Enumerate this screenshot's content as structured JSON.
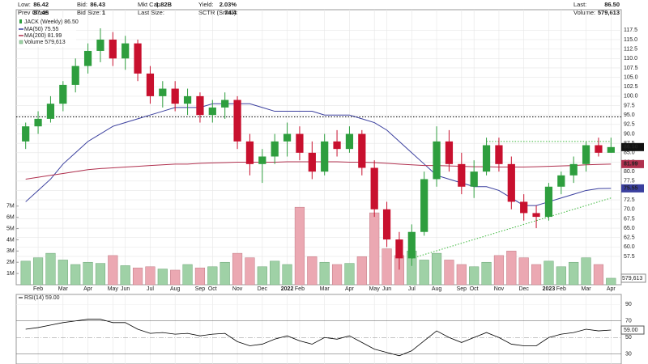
{
  "header": {
    "rows": [
      [
        [
          "Low:",
          "86.42"
        ],
        [
          "Bid:",
          "86.43"
        ],
        [
          "Mkt Cap:",
          "1.82B"
        ],
        [
          "Yield:",
          "2.03%"
        ],
        [
          "Last:",
          "86.50"
        ]
      ],
      [
        [
          "Prev Close:",
          "87.45"
        ],
        [
          "Bid Size:",
          "1"
        ],
        [
          "Last Size:"
        ],
        [
          "SCTR (Small):",
          "74.4"
        ],
        [
          "Volume:",
          "579,613"
        ]
      ]
    ]
  },
  "chart_data": {
    "type": "candlestick",
    "name": "JACK (Weekly) 86.50",
    "last_label": "86.50",
    "up_color": "#2e9e3e",
    "down_color": "#c8102e",
    "categories": [
      null,
      "Feb",
      null,
      "Mar",
      null,
      "Apr",
      null,
      "May",
      "Jun",
      null,
      "Jul",
      null,
      "Aug",
      null,
      "Sep",
      "Oct",
      null,
      "Nov",
      null,
      "Dec",
      null,
      "2022",
      "Feb",
      null,
      "Mar",
      null,
      "Apr",
      null,
      "May",
      "Jun",
      null,
      "Jul",
      null,
      "Aug",
      null,
      "Sep",
      "Oct",
      null,
      "Nov",
      null,
      "Dec",
      null,
      "2023",
      "Feb",
      null,
      "Mar",
      null,
      "Apr"
    ],
    "candles": [
      [
        88,
        93,
        86,
        92
      ],
      [
        92,
        96,
        90,
        94
      ],
      [
        94,
        100,
        93,
        98
      ],
      [
        98,
        104,
        96,
        103
      ],
      [
        103,
        110,
        101,
        108
      ],
      [
        108,
        114,
        106,
        112
      ],
      [
        112,
        118,
        109,
        115
      ],
      [
        115,
        117,
        108,
        110
      ],
      [
        110,
        116,
        107,
        114
      ],
      [
        114,
        115,
        104,
        106
      ],
      [
        106,
        108,
        98,
        100
      ],
      [
        100,
        104,
        97,
        102
      ],
      [
        102,
        104,
        96,
        98
      ],
      [
        98,
        102,
        95,
        100
      ],
      [
        100,
        101,
        93,
        95
      ],
      [
        95,
        99,
        93,
        97
      ],
      [
        97,
        101,
        94,
        99
      ],
      [
        99,
        100,
        86,
        88
      ],
      [
        88,
        90,
        79,
        82
      ],
      [
        82,
        86,
        77,
        84
      ],
      [
        84,
        90,
        82,
        88
      ],
      [
        88,
        93,
        84,
        90
      ],
      [
        90,
        92,
        83,
        85
      ],
      [
        85,
        88,
        78,
        80
      ],
      [
        80,
        90,
        79,
        88
      ],
      [
        88,
        91,
        84,
        86
      ],
      [
        86,
        92,
        85,
        90
      ],
      [
        90,
        91,
        79,
        81
      ],
      [
        81,
        83,
        68,
        70
      ],
      [
        70,
        72,
        60,
        62
      ],
      [
        62,
        64,
        54,
        57
      ],
      [
        57,
        66,
        55,
        64
      ],
      [
        64,
        80,
        63,
        78
      ],
      [
        78,
        92,
        76,
        88
      ],
      [
        88,
        91,
        80,
        82
      ],
      [
        82,
        85,
        74,
        76
      ],
      [
        76,
        83,
        73,
        80
      ],
      [
        80,
        89,
        79,
        87
      ],
      [
        87,
        89,
        80,
        82
      ],
      [
        82,
        84,
        70,
        72
      ],
      [
        72,
        74,
        67,
        69
      ],
      [
        69,
        71,
        65,
        68
      ],
      [
        68,
        77,
        67,
        76
      ],
      [
        76,
        80,
        74,
        79
      ],
      [
        79,
        84,
        77,
        82
      ],
      [
        82,
        88,
        80,
        87
      ],
      [
        87,
        89,
        84,
        85
      ],
      [
        85,
        89,
        85,
        86.5
      ]
    ],
    "series": [
      {
        "name": "MA(50) 75.55",
        "color": "#3a3f9e",
        "last_label": "75.55",
        "values": [
          72,
          75,
          78,
          82,
          85,
          88,
          90,
          92,
          93,
          94,
          95,
          96,
          97,
          97,
          97,
          98,
          98,
          98,
          98,
          97,
          96,
          96,
          96,
          96,
          95,
          95,
          95,
          94,
          93,
          91,
          88,
          85,
          82,
          79,
          78,
          77,
          76,
          76,
          75,
          73,
          71,
          71,
          72,
          73,
          74,
          75,
          75.5,
          75.55
        ]
      },
      {
        "name": "MA(200) 81.99",
        "color": "#b0304e",
        "last_label": "81.99",
        "values": [
          78,
          78.5,
          79,
          79.5,
          80,
          80.5,
          80.8,
          81,
          81.2,
          81.4,
          81.6,
          81.8,
          82,
          82,
          82.2,
          82.3,
          82.4,
          82.5,
          82.5,
          82.5,
          82.5,
          82.6,
          82.6,
          82.6,
          82.6,
          82.6,
          82.5,
          82.5,
          82.4,
          82.2,
          82,
          81.8,
          81.6,
          81.6,
          81.5,
          81.4,
          81.3,
          81.3,
          81.2,
          81.2,
          81.2,
          81.3,
          81.4,
          81.5,
          81.6,
          81.8,
          81.9,
          81.99
        ]
      }
    ],
    "ylim": [
      50,
      122.5
    ],
    "yticks": [
      57.5,
      {
        "value": 60,
        "label": "60.0"
      },
      62.5,
      {
        "value": 65,
        "label": "65.0"
      },
      67.5,
      {
        "value": 70,
        "label": "70.0"
      },
      72.5,
      {
        "value": 75,
        "label": "75.0"
      },
      77.5,
      {
        "value": 80,
        "label": "80.0"
      },
      82.5,
      {
        "value": 85,
        "label": "85.0"
      },
      87.5,
      {
        "value": 90,
        "label": "90.0"
      },
      92.5,
      {
        "value": 95,
        "label": "95.0"
      },
      97.5,
      {
        "value": 100,
        "label": "100.0"
      },
      102.5,
      {
        "value": 105,
        "label": "105.0"
      },
      107.5,
      {
        "value": 110,
        "label": "110.0"
      },
      112.5,
      {
        "value": 115,
        "label": "115.0"
      },
      117.5
    ],
    "grid": true,
    "hline": 94.5,
    "resistance": {
      "from": 37,
      "to": 47,
      "y": 88
    },
    "trendline": {
      "x": [
        31,
        47
      ],
      "y": [
        57,
        73
      ]
    },
    "volume": {
      "name": "Volume 579,613",
      "last_label": "579,613",
      "up_color": "#9fd1a6",
      "down_color": "#eba8b2",
      "values": [
        2.1,
        2.4,
        2.8,
        2.2,
        1.8,
        2.0,
        1.9,
        2.6,
        1.7,
        1.5,
        1.6,
        1.4,
        1.3,
        1.8,
        1.5,
        1.6,
        2.0,
        2.8,
        2.4,
        1.6,
        2.1,
        1.8,
        6.9,
        2.5,
        2.0,
        1.8,
        1.9,
        2.5,
        6.4,
        3.2,
        2.6,
        3.0,
        2.2,
        2.8,
        2.2,
        1.8,
        1.6,
        2.0,
        2.6,
        3.0,
        2.4,
        1.8,
        2.1,
        1.6,
        2.0,
        2.4,
        1.8,
        0.579613
      ],
      "ylim": [
        0,
        7.2
      ],
      "yticks": [
        {
          "value": 1,
          "label": "1M"
        },
        {
          "value": 2,
          "label": "2M"
        },
        {
          "value": 3,
          "label": "3M"
        },
        {
          "value": 4,
          "label": "4M"
        },
        {
          "value": 5,
          "label": "5M"
        },
        {
          "value": 6,
          "label": "6M"
        },
        {
          "value": 7,
          "label": "7M"
        }
      ]
    },
    "rsi": {
      "name": "RSI(14) 59.00",
      "last_label": "59.00",
      "color": "#000000",
      "values": [
        60,
        62,
        65,
        68,
        70,
        72,
        72,
        68,
        68,
        60,
        55,
        56,
        54,
        55,
        52,
        54,
        55,
        45,
        40,
        42,
        48,
        52,
        46,
        42,
        50,
        48,
        52,
        44,
        36,
        32,
        28,
        34,
        46,
        58,
        50,
        44,
        50,
        56,
        50,
        42,
        40,
        40,
        50,
        54,
        56,
        60,
        58,
        59
      ],
      "ylim": [
        20,
        100
      ],
      "yticks": [
        30,
        50,
        70,
        90
      ]
    }
  }
}
